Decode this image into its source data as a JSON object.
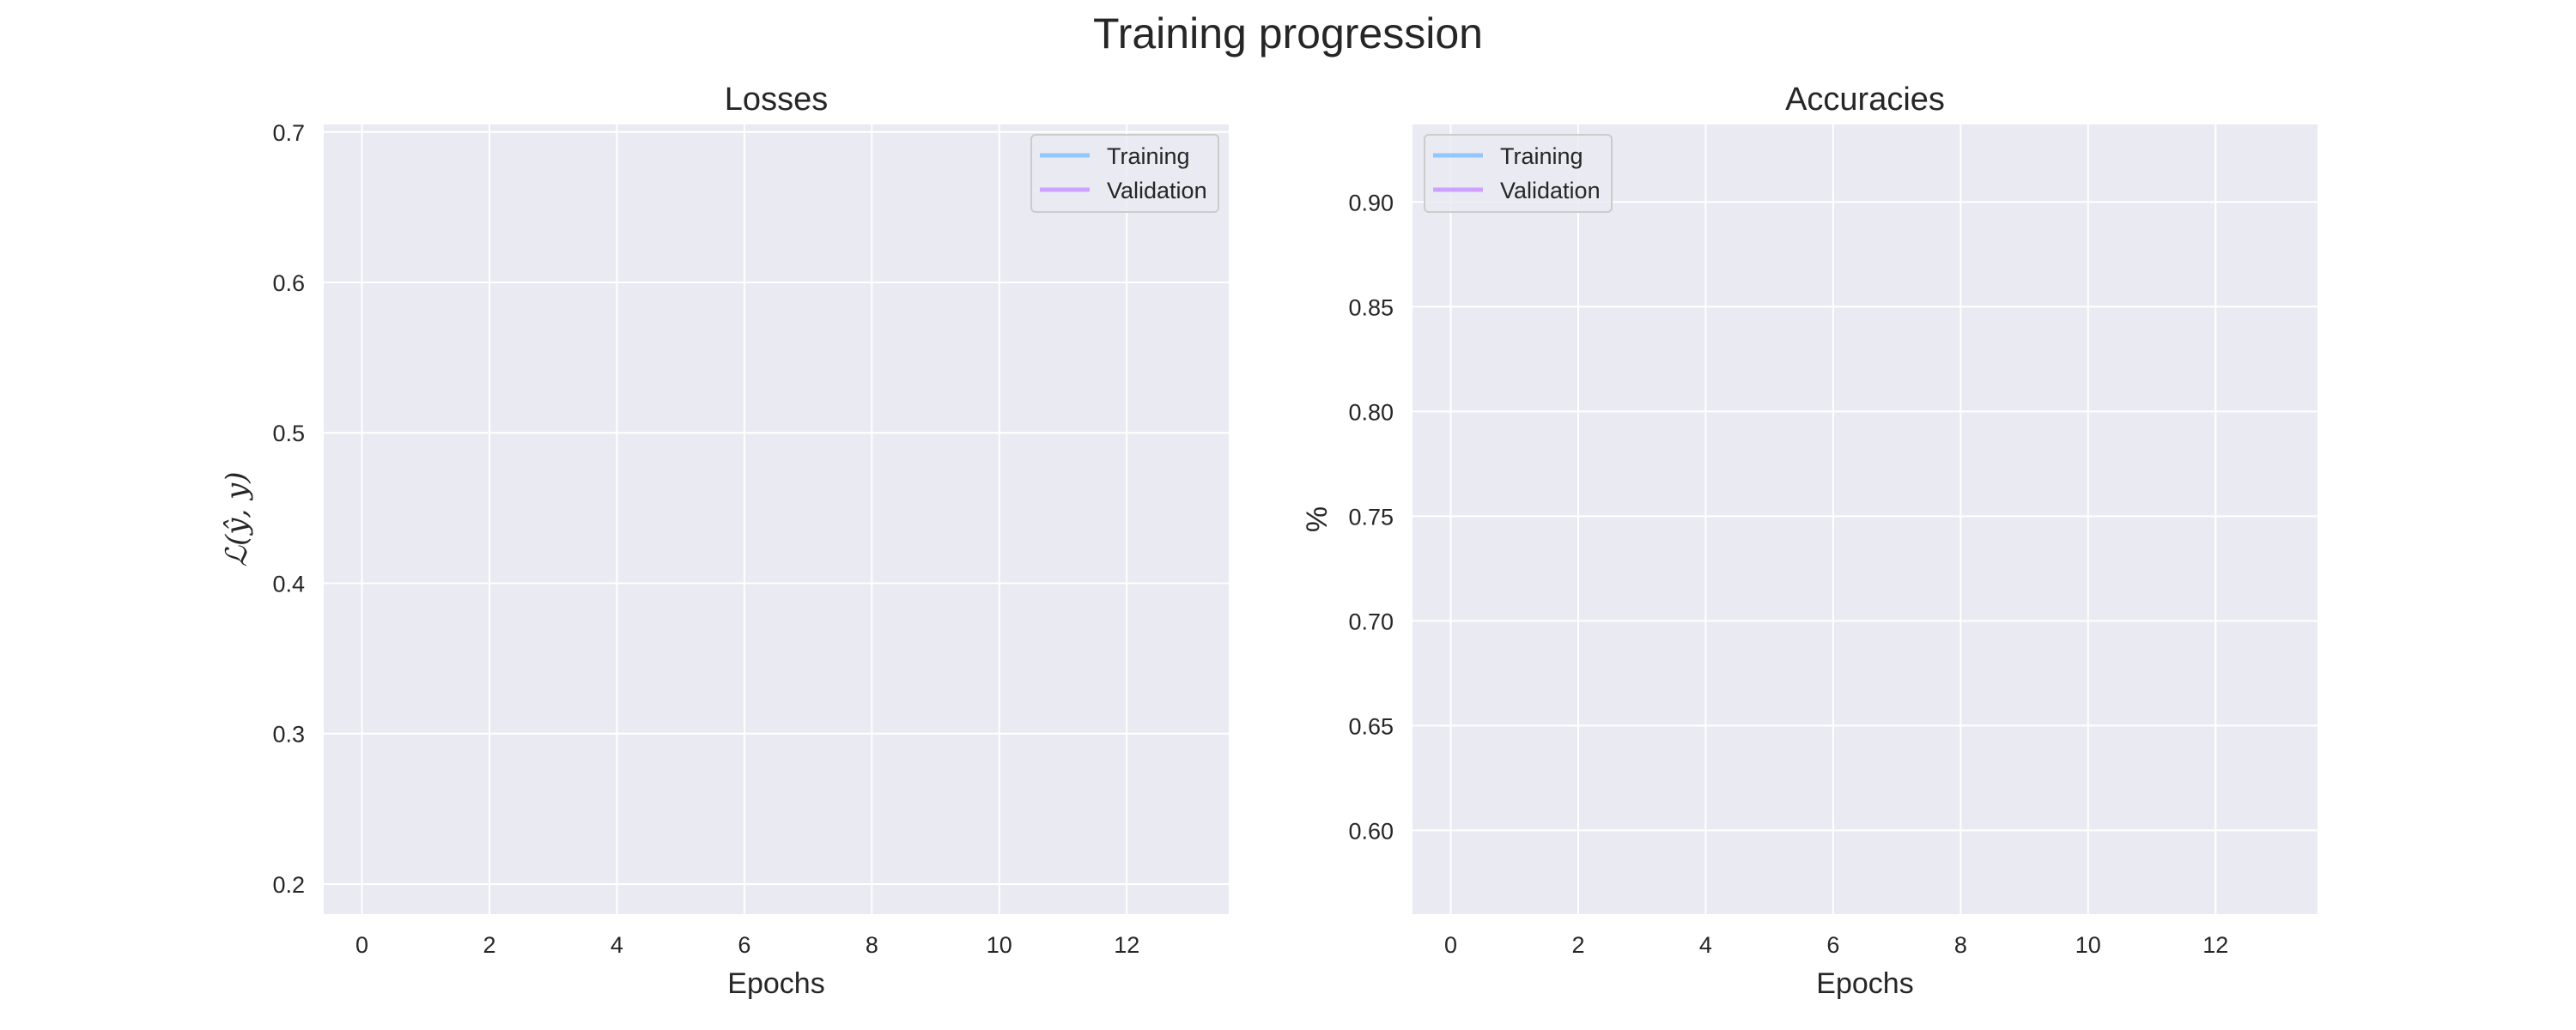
{
  "figure": {
    "suptitle": "Training progression"
  },
  "chart_data": [
    {
      "type": "line",
      "title": "Losses",
      "xlabel": "Epochs",
      "ylabel": "ℒ(ŷ, y)",
      "xlim": [
        -0.6,
        13.6
      ],
      "ylim": [
        0.18,
        0.705
      ],
      "xticks": [
        0,
        2,
        4,
        6,
        8,
        10,
        12
      ],
      "yticks": [
        0.2,
        0.3,
        0.4,
        0.5,
        0.6,
        0.7
      ],
      "ytick_labels": [
        "0.2",
        "0.3",
        "0.4",
        "0.5",
        "0.6",
        "0.7"
      ],
      "grid": true,
      "legend_loc": "top-right",
      "series": [
        {
          "name": "Training",
          "color": "#92c6ff",
          "x": [],
          "y": []
        },
        {
          "name": "Validation",
          "color": "#d0a0ff",
          "x": [],
          "y": []
        }
      ]
    },
    {
      "type": "line",
      "title": "Accuracies",
      "xlabel": "Epochs",
      "ylabel": "%",
      "xlim": [
        -0.6,
        13.6
      ],
      "ylim": [
        0.56,
        0.937
      ],
      "xticks": [
        0,
        2,
        4,
        6,
        8,
        10,
        12
      ],
      "yticks": [
        0.6,
        0.65,
        0.7,
        0.75,
        0.8,
        0.85,
        0.9
      ],
      "ytick_labels": [
        "0.60",
        "0.65",
        "0.70",
        "0.75",
        "0.80",
        "0.85",
        "0.90"
      ],
      "grid": true,
      "legend_loc": "top-left",
      "series": [
        {
          "name": "Training",
          "color": "#92c6ff",
          "x": [],
          "y": []
        },
        {
          "name": "Validation",
          "color": "#d0a0ff",
          "x": [],
          "y": []
        }
      ]
    }
  ]
}
